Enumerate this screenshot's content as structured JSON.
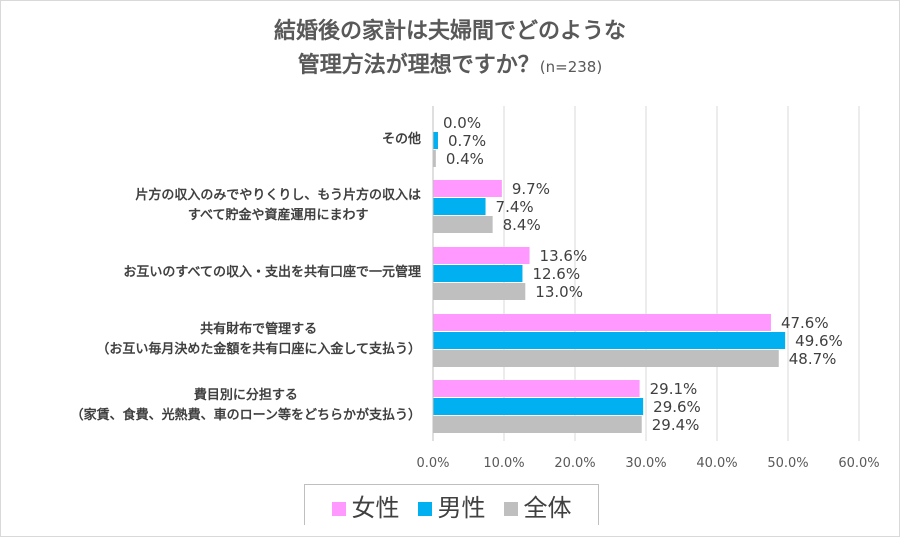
{
  "chart_data": {
    "type": "bar",
    "orientation": "horizontal",
    "title": "結婚後の家計は夫婦間でどのような管理方法が理想ですか？",
    "title_line1": "結婚後の家計は夫婦間でどのような",
    "title_line2": "管理方法が理想ですか？",
    "subtitle": "(n=238)",
    "categories": [
      [
        "その他"
      ],
      [
        "片方の収入のみでやりくりし、もう片方の収入は",
        "すべて貯金や資産運用にまわす"
      ],
      [
        "お互いのすべての収入・支出を共有口座で一元管理"
      ],
      [
        "共有財布で管理する",
        "（お互い毎月決めた金額を共有口座に入金して支払う）"
      ],
      [
        "費目別に分担する",
        "（家賃、食費、光熱費、車のローン等をどちらかが支払う）"
      ]
    ],
    "series": [
      {
        "name": "女性",
        "color": "#ff99ff",
        "values": [
          0.0,
          9.7,
          13.6,
          47.6,
          29.1
        ]
      },
      {
        "name": "男性",
        "color": "#00b0f0",
        "values": [
          0.7,
          7.4,
          12.6,
          49.6,
          29.6
        ]
      },
      {
        "name": "全体",
        "color": "#bfbfbf",
        "values": [
          0.4,
          8.4,
          13.0,
          48.7,
          29.4
        ]
      }
    ],
    "xlim": [
      0,
      60
    ],
    "xticks": [
      "0.0%",
      "10.0%",
      "20.0%",
      "30.0%",
      "40.0%",
      "50.0%",
      "60.0%"
    ],
    "grid": true,
    "legend": "bottom"
  }
}
